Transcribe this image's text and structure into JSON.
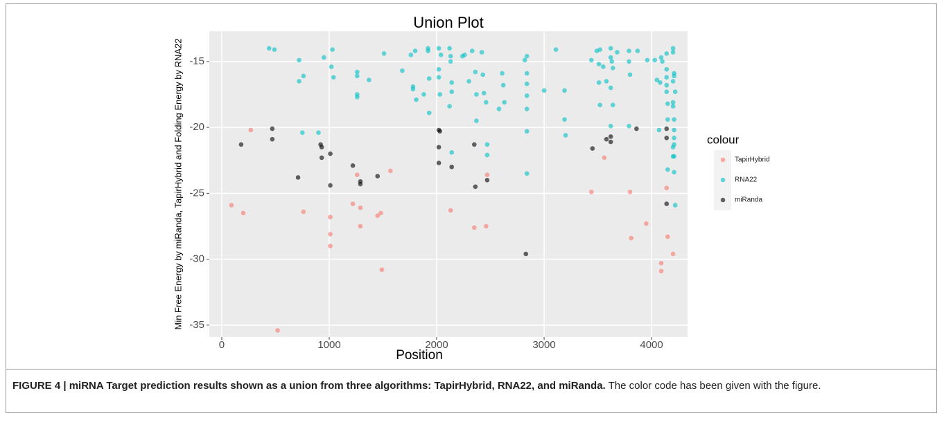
{
  "chart_data": {
    "type": "scatter",
    "title": "Union Plot",
    "x_label": "Position",
    "y_label": "Min Free Energy by miRanda, TapirHybrid and Folding Energy by RNA22",
    "legend_title": "colour",
    "legend": "right",
    "grid": true,
    "xlim": [
      -116,
      4335
    ],
    "ylim": [
      -35.9,
      -12.7
    ],
    "xticks": [
      0,
      1000,
      2000,
      3000,
      4000
    ],
    "yticks": [
      -35,
      -30,
      -25,
      -20,
      -15
    ],
    "series": [
      {
        "name": "TapirHybrid",
        "color": "#F8766D",
        "x": [
          90,
          200,
          270,
          520,
          760,
          1010,
          1010,
          1010,
          1220,
          1260,
          1290,
          1290,
          1450,
          1480,
          1490,
          1570,
          2130,
          2350,
          2460,
          2470,
          3440,
          3560,
          3800,
          3810,
          3950,
          4090,
          4090,
          4140,
          4150,
          4200
        ],
        "values": [
          -25.9,
          -26.5,
          -20.2,
          -35.4,
          -26.4,
          -26.8,
          -28.1,
          -29.0,
          -25.8,
          -23.6,
          -26.1,
          -27.5,
          -26.7,
          -26.5,
          -30.8,
          -23.3,
          -26.3,
          -27.6,
          -27.5,
          -23.6,
          -24.9,
          -22.3,
          -24.9,
          -28.4,
          -27.3,
          -30.3,
          -30.9,
          -24.6,
          -28.3,
          -29.6
        ]
      },
      {
        "name": "RNA22",
        "color": "#00BFC4",
        "x": [
          440,
          490,
          720,
          720,
          760,
          750,
          900,
          950,
          1030,
          1020,
          1040,
          1260,
          1260,
          1260,
          1260,
          1370,
          1510,
          1680,
          1760,
          1780,
          1780,
          1800,
          1810,
          1880,
          1920,
          1920,
          1930,
          1930,
          2020,
          2020,
          2020,
          2030,
          2040,
          2120,
          2130,
          2130,
          2140,
          2140,
          2120,
          2140,
          2240,
          2260,
          2300,
          2330,
          2360,
          2370,
          2370,
          2420,
          2430,
          2440,
          2460,
          2470,
          2470,
          2580,
          2610,
          2620,
          2630,
          2820,
          2840,
          2840,
          2840,
          2840,
          2840,
          2840,
          2840,
          3000,
          3110,
          3190,
          3190,
          3200,
          3440,
          3490,
          3520,
          3510,
          3510,
          3520,
          3550,
          3580,
          3620,
          3620,
          3630,
          3640,
          3620,
          3640,
          3620,
          3680,
          3790,
          3790,
          3800,
          3790,
          3870,
          3960,
          4030,
          4050,
          4080,
          4090,
          4100,
          4070,
          4140,
          4140,
          4140,
          4140,
          4140,
          4150,
          4150,
          4150,
          4200,
          4200,
          4210,
          4210,
          4200,
          4220,
          4200,
          4200,
          4210,
          4210,
          4210,
          4210,
          4200,
          4200,
          4210,
          4210,
          4220
        ],
        "values": [
          -14.0,
          -14.1,
          -14.9,
          -16.5,
          -16.1,
          -20.4,
          -20.4,
          -14.7,
          -14.1,
          -15.4,
          -16.2,
          -15.8,
          -16.1,
          -17.5,
          -17.7,
          -16.4,
          -14.4,
          -15.7,
          -14.5,
          -16.9,
          -17.1,
          -14.2,
          -17.9,
          -17.5,
          -14.0,
          -14.2,
          -16.3,
          -18.9,
          -14.0,
          -15.6,
          -16.2,
          -17.5,
          -14.5,
          -14.0,
          -14.6,
          -15.0,
          -16.6,
          -17.3,
          -18.4,
          -21.9,
          -14.6,
          -14.5,
          -16.5,
          -14.2,
          -15.8,
          -17.5,
          -19.5,
          -14.3,
          -16.0,
          -17.4,
          -18.1,
          -21.3,
          -22.1,
          -18.6,
          -15.9,
          -16.8,
          -18.1,
          -14.9,
          -14.6,
          -15.9,
          -16.7,
          -17.6,
          -18.6,
          -20.3,
          -23.5,
          -17.2,
          -14.1,
          -17.2,
          -19.4,
          -20.6,
          -14.9,
          -14.2,
          -14.1,
          -15.2,
          -16.6,
          -18.3,
          -15.4,
          -16.5,
          -14.0,
          -14.7,
          -15.0,
          -15.5,
          -17.0,
          -18.3,
          -19.9,
          -14.3,
          -14.2,
          -15.0,
          -16.0,
          -19.9,
          -14.2,
          -14.9,
          -14.9,
          -16.4,
          -16.6,
          -14.7,
          -15.0,
          -20.2,
          -14.4,
          -15.6,
          -16.2,
          -16.8,
          -17.3,
          -18.2,
          -19.4,
          -23.2,
          -14.0,
          -14.3,
          -15.9,
          -16.1,
          -16.5,
          -17.3,
          -18.1,
          -18.4,
          -19.4,
          -20.2,
          -20.8,
          -21.3,
          -21.5,
          -22.2,
          -22.2,
          -23.4,
          -25.9
        ]
      },
      {
        "name": "miRanda",
        "color": "#000000",
        "x": [
          180,
          470,
          470,
          710,
          920,
          930,
          930,
          1010,
          1010,
          1220,
          1290,
          1290,
          1450,
          2020,
          2030,
          2020,
          2020,
          2140,
          2350,
          2360,
          2470,
          2830,
          3450,
          3580,
          3620,
          3620,
          3860,
          4140,
          4140,
          4140
        ],
        "values": [
          -21.3,
          -20.1,
          -20.9,
          -23.8,
          -21.3,
          -21.5,
          -22.3,
          -22.0,
          -24.4,
          -22.9,
          -24.1,
          -24.3,
          -23.7,
          -20.2,
          -20.3,
          -21.5,
          -22.7,
          -23.0,
          -21.3,
          -24.5,
          -24.0,
          -29.6,
          -21.6,
          -20.9,
          -20.7,
          -21.1,
          -20.1,
          -20.1,
          -20.8,
          -25.8
        ]
      }
    ]
  },
  "caption": {
    "label": "FIGURE 4 | miRNA Target prediction results shown as a union from three algorithms: TapirHybrid, RNA22, and miRanda.",
    "text": "The color code has been given with the figure."
  }
}
